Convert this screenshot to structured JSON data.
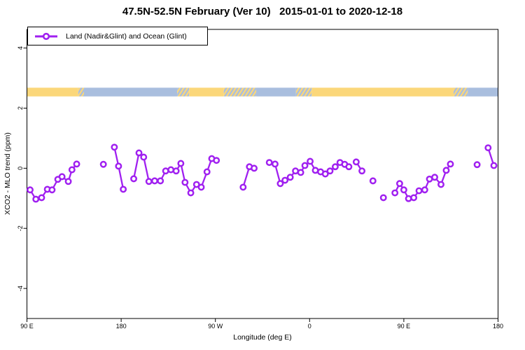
{
  "window": {
    "background": "#ffffff"
  },
  "chart_data": {
    "type": "line",
    "title": "47.5N-52.5N February (Ver 10)   2015-01-01 to 2020-12-18",
    "xlabel": "Longitude (deg E)",
    "ylabel": "XCO2 - MLO trend (ppm)",
    "grid": false,
    "legend_position": "top-left",
    "legend": [
      {
        "label": "Land (Nadir&Glint) and Ocean (Glint)",
        "color": "#A020F0",
        "marker": "open-circle-on-line"
      }
    ],
    "x_axis": {
      "note": "longitude axis wraps eastward; positions stored as degrees east of 0 starting at 90E (90..540)",
      "range": [
        90,
        540
      ],
      "ticks": [
        {
          "pos": 90,
          "label": "90 E"
        },
        {
          "pos": 180,
          "label": "180"
        },
        {
          "pos": 270,
          "label": "90 W"
        },
        {
          "pos": 360,
          "label": "0"
        },
        {
          "pos": 450,
          "label": "90 E"
        },
        {
          "pos": 540,
          "label": "180"
        }
      ]
    },
    "y_axis": {
      "range": [
        -5.0,
        4.62
      ],
      "ticks": [
        {
          "pos": 4,
          "label": "4"
        },
        {
          "pos": 2,
          "label": "2"
        },
        {
          "pos": 0,
          "label": "0"
        },
        {
          "pos": -2,
          "label": "-2"
        },
        {
          "pos": -4,
          "label": "-4"
        }
      ]
    },
    "surface_band": {
      "description": "land/ocean strip along longitude",
      "value_top": 2.68,
      "value_bottom": 2.39,
      "land_color": "#FBD77A",
      "ocean_color": "#A9BEDE",
      "segments": [
        [
          90,
          139,
          "land"
        ],
        [
          139,
          144.5,
          "mixed"
        ],
        [
          144.5,
          233.5,
          "ocean"
        ],
        [
          233.5,
          245,
          "mixed"
        ],
        [
          245,
          278,
          "land"
        ],
        [
          278,
          309,
          "mixed"
        ],
        [
          309,
          347,
          "ocean"
        ],
        [
          347,
          362,
          "mixed"
        ],
        [
          362,
          497.5,
          "land"
        ],
        [
          497.5,
          511,
          "mixed"
        ],
        [
          511,
          540,
          "ocean"
        ]
      ]
    },
    "series": [
      {
        "name": "Land (Nadir&Glint) and Ocean (Glint)",
        "color": "#A020F0",
        "marker_fill": "#ffffff",
        "segments": [
          [
            [
              93,
              -0.72
            ],
            [
              98.5,
              -1.03
            ],
            [
              104,
              -0.98
            ],
            [
              109.5,
              -0.7
            ],
            [
              114,
              -0.72
            ],
            [
              119.5,
              -0.37
            ],
            [
              123.5,
              -0.28
            ],
            [
              129.5,
              -0.44
            ],
            [
              133,
              -0.05
            ],
            [
              137.5,
              0.14
            ]
          ],
          [
            [
              163,
              0.13
            ]
          ],
          [
            [
              173.5,
              0.7
            ],
            [
              177.5,
              0.07
            ],
            [
              182,
              -0.7
            ]
          ],
          [
            [
              192,
              -0.35
            ],
            [
              197,
              0.51
            ],
            [
              201.5,
              0.37
            ],
            [
              206.5,
              -0.44
            ],
            [
              212,
              -0.42
            ],
            [
              217.5,
              -0.42
            ],
            [
              222.5,
              -0.09
            ],
            [
              227.5,
              -0.05
            ],
            [
              232.5,
              -0.09
            ],
            [
              237,
              0.16
            ],
            [
              241,
              -0.47
            ],
            [
              246.5,
              -0.82
            ],
            [
              252,
              -0.54
            ],
            [
              256.5,
              -0.63
            ],
            [
              262,
              -0.12
            ],
            [
              266.5,
              0.32
            ],
            [
              271,
              0.26
            ]
          ],
          [
            [
              296.5,
              -0.63
            ],
            [
              302.5,
              0.05
            ],
            [
              307,
              0.0
            ]
          ],
          [
            [
              321.5,
              0.19
            ],
            [
              327,
              0.14
            ],
            [
              332,
              -0.51
            ],
            [
              336.5,
              -0.4
            ],
            [
              341.5,
              -0.3
            ],
            [
              346.5,
              -0.09
            ],
            [
              351.5,
              -0.14
            ],
            [
              355.5,
              0.09
            ],
            [
              360.5,
              0.23
            ],
            [
              365.5,
              -0.07
            ],
            [
              370.5,
              -0.12
            ],
            [
              375,
              -0.19
            ],
            [
              379.5,
              -0.09
            ],
            [
              384.5,
              0.05
            ],
            [
              389,
              0.19
            ],
            [
              393.5,
              0.13
            ],
            [
              397.5,
              0.05
            ]
          ],
          [
            [
              404.5,
              0.21
            ],
            [
              410,
              -0.09
            ]
          ],
          [
            [
              420.5,
              -0.42
            ]
          ],
          [
            [
              430.5,
              -0.98
            ]
          ],
          [
            [
              441.5,
              -0.82
            ],
            [
              446,
              -0.51
            ],
            [
              450,
              -0.72
            ],
            [
              454.5,
              -1.01
            ],
            [
              459.5,
              -0.98
            ],
            [
              464.5,
              -0.75
            ],
            [
              470,
              -0.72
            ],
            [
              474.5,
              -0.36
            ],
            [
              479.5,
              -0.3
            ],
            [
              485.5,
              -0.54
            ],
            [
              490.5,
              -0.07
            ],
            [
              494.5,
              0.14
            ]
          ],
          [
            [
              520,
              0.12
            ]
          ],
          [
            [
              530.5,
              0.68
            ],
            [
              536,
              0.09
            ]
          ]
        ]
      }
    ]
  }
}
